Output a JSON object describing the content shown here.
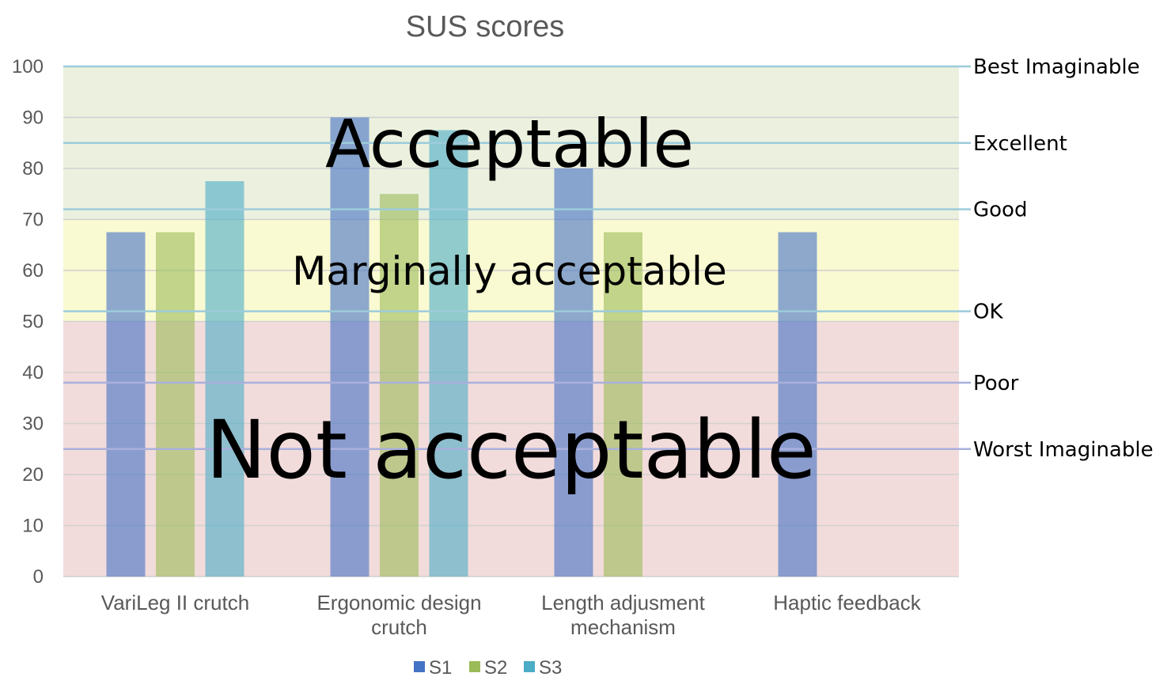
{
  "chart_data": {
    "type": "bar",
    "title": "SUS scores",
    "xlabel": "",
    "ylabel": "",
    "ylim": [
      0,
      100
    ],
    "yticks": [
      0,
      10,
      20,
      30,
      40,
      50,
      60,
      70,
      80,
      90,
      100
    ],
    "grid": true,
    "legend_position": "bottom",
    "categories": [
      [
        "VariLeg II crutch"
      ],
      [
        "Ergonomic design",
        "crutch"
      ],
      [
        "Length adjusment",
        "mechanism"
      ],
      [
        "Haptic feedback"
      ]
    ],
    "series": [
      {
        "name": "S1",
        "color": "#4472c4",
        "values": [
          67.5,
          90,
          80,
          67.5
        ]
      },
      {
        "name": "S2",
        "color": "#9bbb59",
        "values": [
          67.5,
          75,
          67.5,
          null
        ]
      },
      {
        "name": "S3",
        "color": "#4bacc6",
        "values": [
          77.5,
          87.5,
          null,
          null
        ]
      }
    ],
    "zones": [
      {
        "label": "Not acceptable",
        "from": 0,
        "to": 50,
        "color": "#f2dcdb"
      },
      {
        "label": "Marginally acceptable",
        "from": 50,
        "to": 70,
        "color": "#fafad2"
      },
      {
        "label": "Acceptable",
        "from": 70,
        "to": 100,
        "color": "#ebf1de"
      }
    ],
    "rating_lines": [
      {
        "label": "Best Imaginable",
        "value": 100
      },
      {
        "label": "Excellent",
        "value": 85
      },
      {
        "label": "Good",
        "value": 72
      },
      {
        "label": "OK",
        "value": 52
      },
      {
        "label": "Poor",
        "value": 38
      },
      {
        "label": "Worst Imaginable",
        "value": 25
      }
    ]
  }
}
